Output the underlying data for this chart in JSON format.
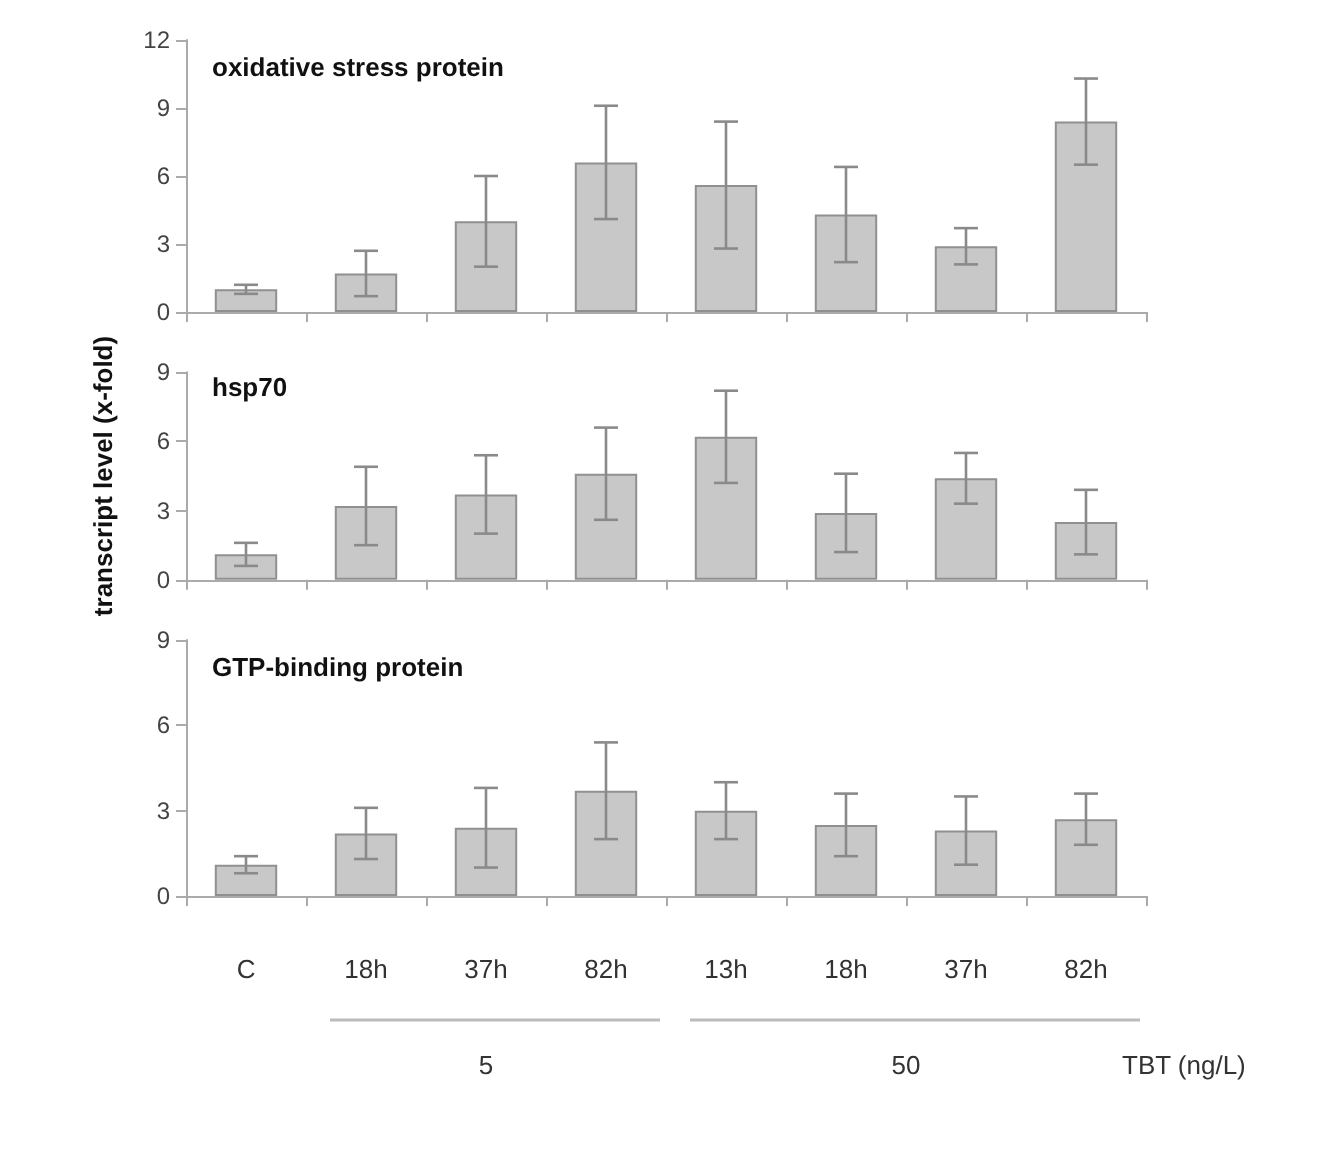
{
  "chart_data": [
    {
      "type": "bar",
      "title": "oxidative stress protein",
      "categories": [
        null,
        null,
        null,
        null,
        null,
        null,
        null,
        null
      ],
      "values": [
        1.0,
        1.7,
        4.0,
        6.6,
        5.6,
        4.3,
        2.9,
        8.4
      ],
      "errors": [
        0.2,
        1.0,
        2.0,
        2.5,
        2.8,
        2.1,
        0.8,
        1.9
      ],
      "color": "#c8c8c8",
      "ylim": [
        0,
        12
      ],
      "yticks": [
        0,
        3,
        6,
        9,
        12
      ],
      "tick_labels": "y",
      "grid": false
    },
    {
      "type": "bar",
      "title": "hsp70",
      "ylabel": "transcript level (x-fold)",
      "categories": [
        null,
        null,
        null,
        null,
        null,
        null,
        null,
        null
      ],
      "values": [
        1.1,
        3.2,
        3.7,
        4.6,
        6.2,
        2.9,
        4.4,
        2.5
      ],
      "errors": [
        0.5,
        1.7,
        1.7,
        2.0,
        2.0,
        1.7,
        1.1,
        1.4
      ],
      "color": "#c8c8c8",
      "ylim": [
        0,
        9
      ],
      "yticks": [
        0,
        3,
        6,
        9
      ],
      "tick_labels": "y",
      "grid": false
    },
    {
      "type": "bar",
      "title": "GTP-binding protein",
      "categories": [
        "C",
        "18h",
        "37h",
        "82h",
        "13h",
        "18h",
        "37h",
        "82h"
      ],
      "values": [
        1.1,
        2.2,
        2.4,
        3.7,
        3.0,
        2.5,
        2.3,
        2.7
      ],
      "errors": [
        0.3,
        0.9,
        1.4,
        1.7,
        1.0,
        1.1,
        1.2,
        0.9
      ],
      "color": "#c8c8c8",
      "ylim": [
        0,
        9
      ],
      "yticks": [
        0,
        3,
        6,
        9
      ],
      "grid": false,
      "annotations": [
        "5",
        "50",
        "TBT (ng/L)"
      ]
    }
  ]
}
